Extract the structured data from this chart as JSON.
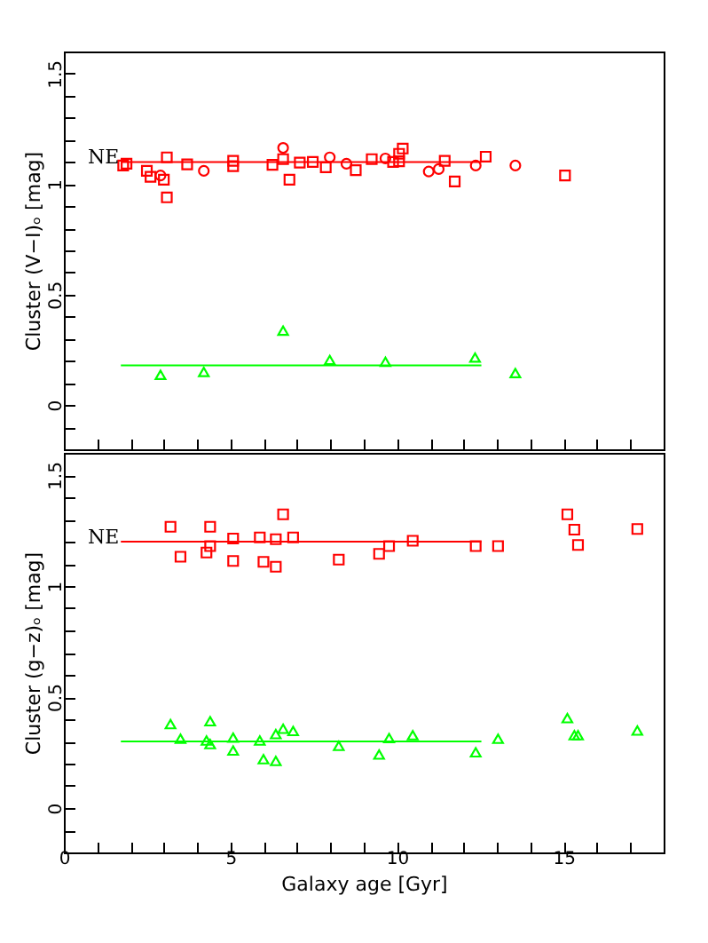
{
  "chart_data": [
    {
      "type": "scatter",
      "ylabel": "Cluster (V−I)ₒ [mag]",
      "tick_labels": "y",
      "xlim": [
        0,
        18
      ],
      "xticks": [
        0,
        {
          "value": 1,
          "label": null
        },
        {
          "value": 2,
          "label": null
        },
        {
          "value": 3,
          "label": null
        },
        {
          "value": 4,
          "label": null
        },
        5,
        {
          "value": 6,
          "label": null
        },
        {
          "value": 7,
          "label": null
        },
        {
          "value": 8,
          "label": null
        },
        {
          "value": 9,
          "label": null
        },
        10,
        {
          "value": 11,
          "label": null
        },
        {
          "value": 12,
          "label": null
        },
        {
          "value": 13,
          "label": null
        },
        {
          "value": 14,
          "label": null
        },
        15,
        {
          "value": 16,
          "label": null
        },
        {
          "value": 17,
          "label": null
        }
      ],
      "ylim": [
        -0.2,
        1.6
      ],
      "yticks": [
        {
          "value": -0.1,
          "label": null
        },
        0,
        {
          "value": 0.1,
          "label": null
        },
        {
          "value": 0.2,
          "label": null
        },
        {
          "value": 0.3,
          "label": null
        },
        {
          "value": 0.4,
          "label": null
        },
        0.5,
        {
          "value": 0.6,
          "label": null
        },
        {
          "value": 0.7,
          "label": null
        },
        {
          "value": 0.8,
          "label": null
        },
        {
          "value": 0.9,
          "label": null
        },
        1,
        {
          "value": 1.1,
          "label": null
        },
        {
          "value": 1.2,
          "label": null
        },
        {
          "value": 1.3,
          "label": null
        },
        {
          "value": 1.4,
          "label": null
        },
        1.5
      ],
      "grid": false,
      "legend": false,
      "annotations": [
        "NE"
      ],
      "series": [
        {
          "type": "scatter",
          "marker": "square",
          "color": "#ff0000",
          "x": [
            1.78,
            1.88,
            2.49,
            2.6,
            3.0,
            3.09,
            3.09,
            3.7,
            5.08,
            5.08,
            6.26,
            6.58,
            6.77,
            7.08,
            7.47,
            7.86,
            8.76,
            9.24,
            9.88,
            10.06,
            10.06,
            10.17,
            11.43,
            11.73,
            12.66,
            15.04
          ],
          "values": [
            1.084,
            1.092,
            1.06,
            1.033,
            1.02,
            1.121,
            0.94,
            1.089,
            1.105,
            1.081,
            1.087,
            1.113,
            1.02,
            1.097,
            1.1,
            1.076,
            1.063,
            1.113,
            1.1,
            1.103,
            1.137,
            1.161,
            1.105,
            1.012,
            1.124,
            1.039
          ]
        },
        {
          "type": "scatter",
          "marker": "circle",
          "color": "#ff0000",
          "x": [
            2.9,
            4.2,
            6.58,
            7.98,
            8.48,
            9.65,
            10.95,
            11.25,
            12.36,
            13.55
          ],
          "values": [
            1.039,
            1.06,
            1.164,
            1.121,
            1.092,
            1.116,
            1.057,
            1.068,
            1.084,
            1.084
          ]
        },
        {
          "type": "line",
          "color": "#ff0000",
          "x": [
            1.71,
            12.53
          ],
          "values": [
            1.1,
            1.1
          ]
        },
        {
          "type": "scatter",
          "marker": "triangle",
          "color": "#00ff00",
          "x": [
            2.9,
            4.2,
            6.58,
            7.98,
            9.65,
            12.34,
            13.55
          ],
          "values": [
            0.137,
            0.15,
            0.337,
            0.204,
            0.196,
            0.215,
            0.145
          ]
        },
        {
          "type": "line",
          "color": "#00ff00",
          "x": [
            1.71,
            12.53
          ],
          "values": [
            0.18,
            0.18
          ]
        }
      ]
    },
    {
      "type": "scatter",
      "ylabel": "Cluster (g−z)ₒ [mag]",
      "xlabel": "Galaxy age [Gyr]",
      "xlim": [
        0,
        18
      ],
      "xticks": [
        0,
        {
          "value": 1,
          "label": null
        },
        {
          "value": 2,
          "label": null
        },
        {
          "value": 3,
          "label": null
        },
        {
          "value": 4,
          "label": null
        },
        5,
        {
          "value": 6,
          "label": null
        },
        {
          "value": 7,
          "label": null
        },
        {
          "value": 8,
          "label": null
        },
        {
          "value": 9,
          "label": null
        },
        10,
        {
          "value": 11,
          "label": null
        },
        {
          "value": 12,
          "label": null
        },
        {
          "value": 13,
          "label": null
        },
        {
          "value": 14,
          "label": null
        },
        15,
        {
          "value": 16,
          "label": null
        },
        {
          "value": 17,
          "label": null
        }
      ],
      "ylim": [
        -0.2,
        1.6
      ],
      "yticks": [
        {
          "value": -0.1,
          "label": null
        },
        0,
        {
          "value": 0.1,
          "label": null
        },
        {
          "value": 0.2,
          "label": null
        },
        {
          "value": 0.3,
          "label": null
        },
        {
          "value": 0.4,
          "label": null
        },
        0.5,
        {
          "value": 0.6,
          "label": null
        },
        {
          "value": 0.7,
          "label": null
        },
        {
          "value": 0.8,
          "label": null
        },
        {
          "value": 0.9,
          "label": null
        },
        1,
        {
          "value": 1.1,
          "label": null
        },
        {
          "value": 1.2,
          "label": null
        },
        {
          "value": 1.3,
          "label": null
        },
        {
          "value": 1.4,
          "label": null
        },
        1.5
      ],
      "grid": false,
      "legend": false,
      "annotations": [
        "NE"
      ],
      "series": [
        {
          "type": "scatter",
          "marker": "square",
          "color": "#ff0000",
          "x": [
            3.2,
            3.5,
            4.28,
            4.39,
            4.39,
            5.08,
            5.08,
            5.88,
            5.99,
            6.36,
            6.36,
            6.58,
            6.88,
            8.25,
            9.46,
            9.76,
            10.47,
            12.36,
            13.03,
            15.11,
            15.32,
            15.43,
            17.21
          ],
          "values": [
            1.267,
            1.132,
            1.151,
            1.267,
            1.18,
            1.214,
            1.113,
            1.219,
            1.109,
            1.211,
            1.087,
            1.323,
            1.219,
            1.119,
            1.145,
            1.18,
            1.204,
            1.18,
            1.18,
            1.323,
            1.254,
            1.185,
            1.257
          ]
        },
        {
          "type": "line",
          "color": "#ff0000",
          "x": [
            1.71,
            12.53
          ],
          "values": [
            1.2,
            1.2
          ]
        },
        {
          "type": "scatter",
          "marker": "triangle",
          "color": "#00ff00",
          "x": [
            3.2,
            3.5,
            4.28,
            4.39,
            4.39,
            5.08,
            5.08,
            5.88,
            5.99,
            6.36,
            6.36,
            6.58,
            6.88,
            8.25,
            9.46,
            9.76,
            10.47,
            12.36,
            13.03,
            15.11,
            15.32,
            15.43,
            17.21
          ],
          "values": [
            0.378,
            0.312,
            0.304,
            0.391,
            0.288,
            0.317,
            0.259,
            0.304,
            0.22,
            0.333,
            0.212,
            0.357,
            0.347,
            0.28,
            0.241,
            0.315,
            0.328,
            0.251,
            0.312,
            0.405,
            0.328,
            0.328,
            0.349
          ]
        },
        {
          "type": "line",
          "color": "#00ff00",
          "x": [
            1.71,
            12.53
          ],
          "values": [
            0.3,
            0.3
          ]
        }
      ]
    }
  ]
}
